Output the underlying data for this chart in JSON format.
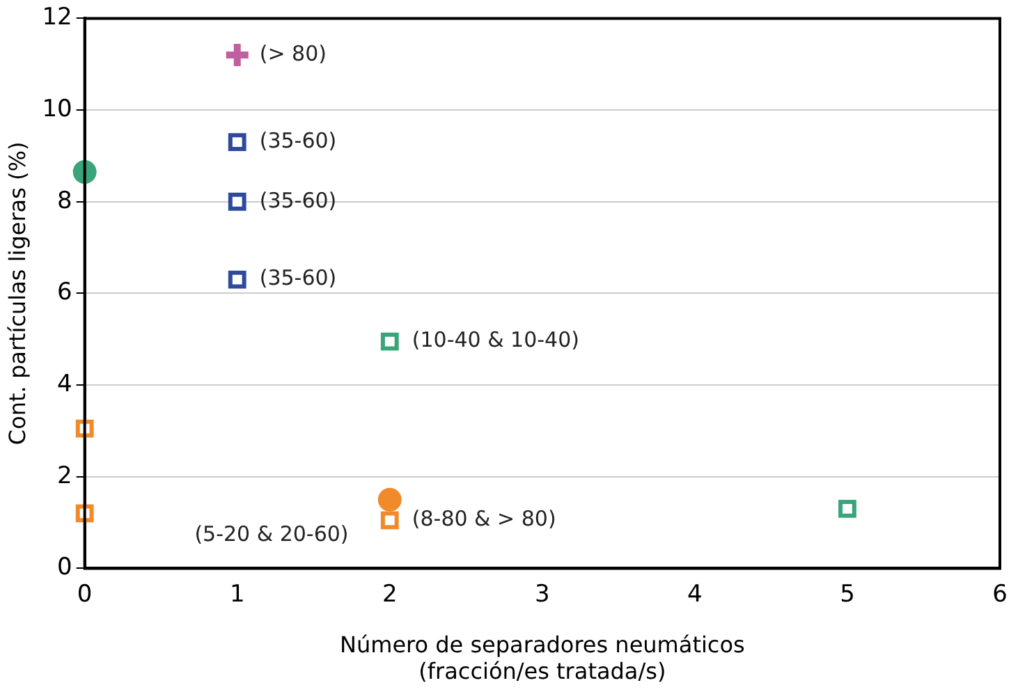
{
  "chart_data": {
    "type": "scatter",
    "xlabel": "Número de separadores neumáticos\n(fracción/es tratada/s)",
    "ylabel": "Cont. partículas ligeras (%)",
    "xlim": [
      0,
      6
    ],
    "xticks": [
      0,
      1,
      2,
      3,
      4,
      5,
      6
    ],
    "ylim": [
      0,
      12
    ],
    "yticks": [
      0,
      2,
      4,
      6,
      8,
      10,
      12
    ],
    "grid": "y",
    "legend": false,
    "series": [
      {
        "color": "#c060a0",
        "marker": "cross",
        "x": [
          1
        ],
        "values": [
          11.2
        ],
        "value_labels": [
          "(> 80)"
        ]
      },
      {
        "color": "#2e4a9a",
        "marker": "square",
        "x": [
          1,
          1,
          1
        ],
        "values": [
          9.3,
          8.0,
          6.3
        ],
        "value_labels": [
          "(35-60)",
          "(35-60)",
          "(35-60)"
        ]
      },
      {
        "color": "#3aa57a",
        "marker": "circle",
        "x": [
          0
        ],
        "values": [
          8.65
        ]
      },
      {
        "color": "#3aa57a",
        "marker": "square",
        "x": [
          2,
          5
        ],
        "values": [
          4.95,
          1.3
        ],
        "value_labels": [
          "(10-40 & 10-40)",
          null
        ]
      },
      {
        "color": "#f08a2a",
        "marker": "square",
        "x": [
          0,
          0,
          2
        ],
        "values": [
          3.05,
          1.2,
          1.05
        ],
        "value_labels": [
          null,
          null,
          "(8-80 & > 80)"
        ]
      },
      {
        "color": "#f08a2a",
        "marker": "circle",
        "x": [
          2
        ],
        "values": [
          1.5
        ]
      }
    ],
    "annotations": [
      "(5-20 & 20-60)"
    ]
  }
}
